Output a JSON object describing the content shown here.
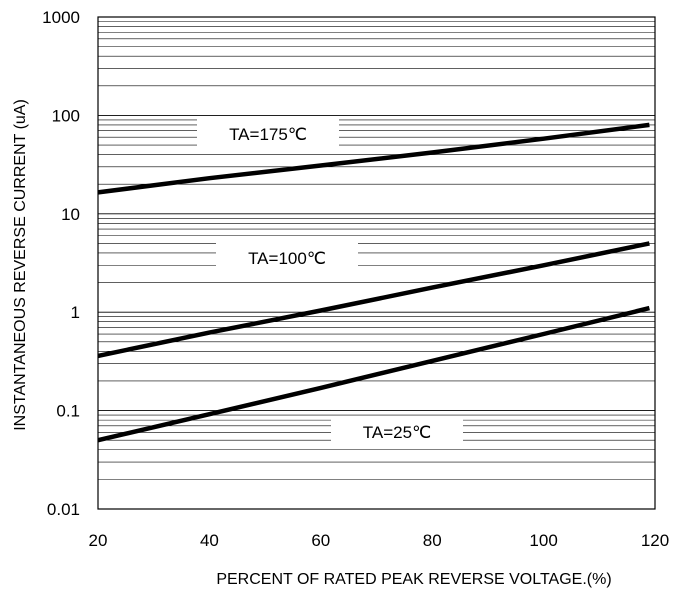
{
  "chart_data": {
    "type": "line",
    "title": "",
    "xlabel": "PERCENT OF RATED PEAK REVERSE VOLTAGE.(%)",
    "ylabel": "INSTANTANEOUS REVERSE CURRENT (uA)",
    "xlim": [
      20,
      120
    ],
    "ylim": [
      0.01,
      1000
    ],
    "yscale": "log",
    "grid": "horizontal-minor",
    "x_ticks": [
      "20",
      "40",
      "60",
      "80",
      "100",
      "120"
    ],
    "y_ticks": [
      "0.01",
      "0.1",
      "1",
      "10",
      "100",
      "1000"
    ],
    "series": [
      {
        "name": "TA=175℃",
        "x": [
          20,
          40,
          60,
          80,
          100,
          119
        ],
        "y": [
          16.5,
          23,
          31,
          42,
          58,
          80
        ]
      },
      {
        "name": "TA=100℃",
        "x": [
          20,
          40,
          60,
          80,
          100,
          119
        ],
        "y": [
          0.36,
          0.62,
          1.04,
          1.78,
          3.0,
          5.0
        ]
      },
      {
        "name": "TA=25℃",
        "x": [
          20,
          40,
          60,
          80,
          100,
          119
        ],
        "y": [
          0.05,
          0.092,
          0.17,
          0.32,
          0.6,
          1.1
        ]
      }
    ],
    "line_color": "#000000"
  }
}
